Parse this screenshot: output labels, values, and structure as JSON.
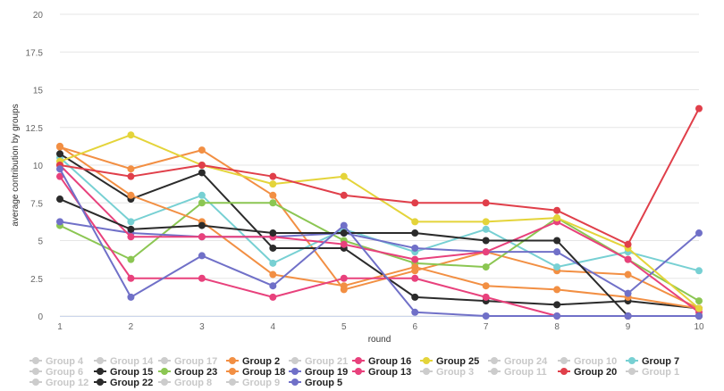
{
  "chart_data": {
    "type": "line",
    "title": "",
    "xlabel": "round",
    "ylabel": "average contribution by groups",
    "x": [
      1,
      2,
      3,
      4,
      5,
      6,
      7,
      8,
      9,
      10
    ],
    "xlim": [
      1,
      10
    ],
    "ylim": [
      0,
      20
    ],
    "y_ticks": [
      "0",
      "2.5",
      "5",
      "7.5",
      "10",
      "12.5",
      "15",
      "17.5",
      "20"
    ],
    "x_ticks": [
      "1",
      "2",
      "3",
      "4",
      "5",
      "6",
      "7",
      "8",
      "9",
      "10"
    ],
    "grid": "horizontal",
    "legend_position": "bottom",
    "inactive_color": "#cccccc",
    "series": [
      {
        "name": "Group 2",
        "color": "#f28f43",
        "values": [
          11.2,
          9.75,
          11.0,
          8.0,
          1.75,
          3.0,
          4.25,
          3.0,
          2.75,
          0.5
        ]
      },
      {
        "name": "Group 7",
        "color": "#77d0d3",
        "values": [
          10.5,
          6.25,
          8.0,
          3.5,
          5.75,
          4.25,
          5.75,
          3.25,
          4.25,
          3.0
        ]
      },
      {
        "name": "Group 15",
        "color": "#2b2b2b",
        "values": [
          10.75,
          7.75,
          9.5,
          4.5,
          4.5,
          1.25,
          1.0,
          0.75,
          1.0,
          0.5
        ]
      },
      {
        "name": "Group 23",
        "color": "#8bc652",
        "values": [
          6.0,
          3.75,
          7.5,
          7.5,
          5.0,
          3.5,
          3.25,
          6.5,
          3.75,
          1.0
        ]
      },
      {
        "name": "Group 18",
        "color": "#f28f43",
        "values": [
          11.25,
          8.0,
          6.25,
          2.75,
          2.0,
          3.25,
          2.0,
          1.75,
          1.25,
          0.5
        ]
      },
      {
        "name": "Group 19",
        "color": "#7070c8",
        "values": [
          6.25,
          5.5,
          5.25,
          5.25,
          5.5,
          4.5,
          4.25,
          4.25,
          1.5,
          5.5
        ]
      },
      {
        "name": "Group 16",
        "color": "#e8417c",
        "values": [
          10.0,
          5.25,
          5.25,
          5.25,
          4.75,
          3.75,
          4.25,
          6.25,
          3.75,
          0.25
        ]
      },
      {
        "name": "Group 13",
        "color": "#e8417c",
        "values": [
          9.25,
          2.5,
          2.5,
          1.25,
          2.5,
          2.5,
          1.25,
          0.0,
          0.0,
          0.0
        ]
      },
      {
        "name": "Group 25",
        "color": "#e4d43a",
        "values": [
          10.25,
          12.0,
          10.0,
          8.75,
          9.25,
          6.25,
          6.25,
          6.5,
          4.5,
          0.5
        ]
      },
      {
        "name": "Group 20",
        "color": "#e03f4a",
        "values": [
          10.0,
          9.25,
          10.0,
          9.25,
          8.0,
          7.5,
          7.5,
          7.0,
          4.75,
          13.75
        ]
      },
      {
        "name": "Group 22",
        "color": "#2b2b2b",
        "values": [
          7.75,
          5.75,
          6.0,
          5.5,
          5.5,
          5.5,
          5.0,
          5.0,
          0.0,
          0.0
        ]
      },
      {
        "name": "Group 5",
        "color": "#7070c8",
        "values": [
          9.75,
          1.25,
          4.0,
          2.0,
          6.0,
          0.25,
          0.0,
          0.0,
          0.0,
          0.0
        ]
      }
    ],
    "legend": [
      {
        "name": "Group 4",
        "active": false
      },
      {
        "name": "Group 14",
        "active": false
      },
      {
        "name": "Group 17",
        "active": false
      },
      {
        "name": "Group 2",
        "active": true,
        "color": "#f28f43"
      },
      {
        "name": "Group 21",
        "active": false
      },
      {
        "name": "Group 16",
        "active": true,
        "color": "#e8417c"
      },
      {
        "name": "Group 25",
        "active": true,
        "color": "#e4d43a"
      },
      {
        "name": "Group 24",
        "active": false
      },
      {
        "name": "Group 10",
        "active": false
      },
      {
        "name": "Group 7",
        "active": true,
        "color": "#77d0d3"
      },
      {
        "name": "Group 6",
        "active": false
      },
      {
        "name": "Group 15",
        "active": true,
        "color": "#2b2b2b"
      },
      {
        "name": "Group 23",
        "active": true,
        "color": "#8bc652"
      },
      {
        "name": "Group 18",
        "active": true,
        "color": "#f28f43"
      },
      {
        "name": "Group 19",
        "active": true,
        "color": "#7070c8"
      },
      {
        "name": "Group 13",
        "active": true,
        "color": "#e8417c"
      },
      {
        "name": "Group 3",
        "active": false
      },
      {
        "name": "Group 11",
        "active": false
      },
      {
        "name": "Group 20",
        "active": true,
        "color": "#e03f4a"
      },
      {
        "name": "Group 1",
        "active": false
      },
      {
        "name": "Group 12",
        "active": false
      },
      {
        "name": "Group 22",
        "active": true,
        "color": "#2b2b2b"
      },
      {
        "name": "Group 8",
        "active": false
      },
      {
        "name": "Group 9",
        "active": false
      },
      {
        "name": "Group 5",
        "active": true,
        "color": "#7070c8"
      }
    ]
  }
}
